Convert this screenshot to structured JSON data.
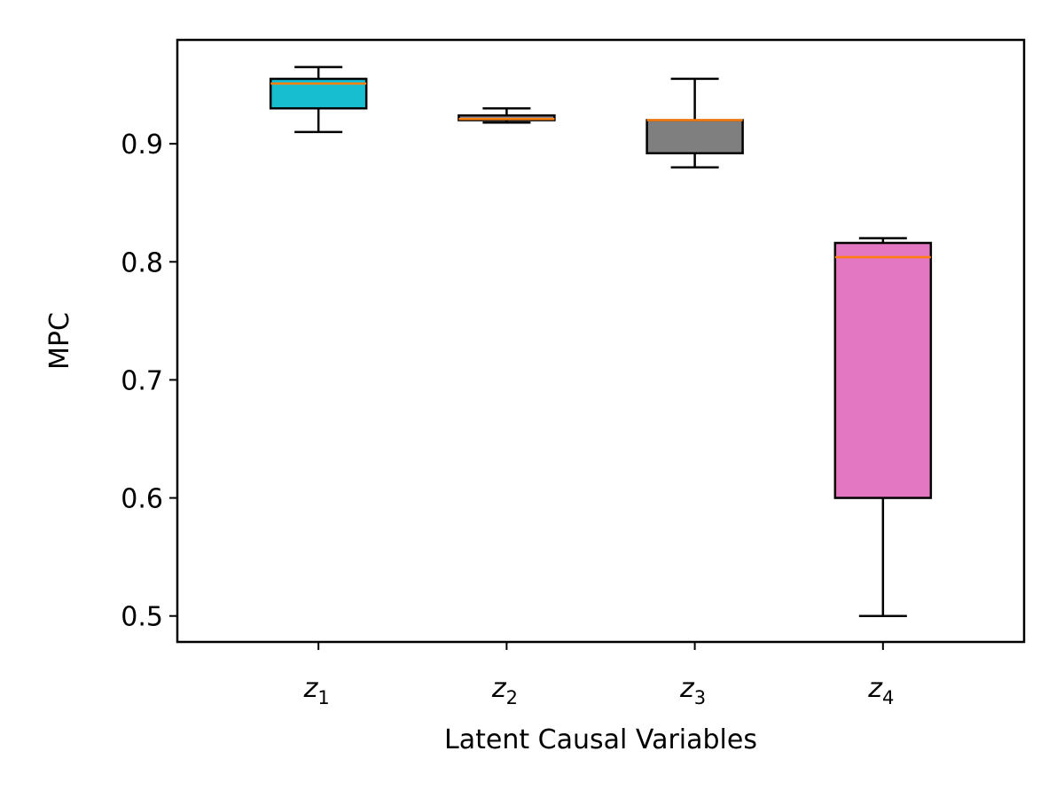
{
  "chart_data": {
    "type": "box",
    "title": "",
    "xlabel": "Latent Causal Variables",
    "ylabel": "MPC",
    "ylim": [
      0.478,
      0.988
    ],
    "yticks": [
      0.5,
      0.6,
      0.7,
      0.8,
      0.9
    ],
    "ytick_labels": [
      "0.5",
      "0.6",
      "0.7",
      "0.8",
      "0.9"
    ],
    "grid": false,
    "categories": [
      {
        "base": "z",
        "sub": "1"
      },
      {
        "base": "z",
        "sub": "2"
      },
      {
        "base": "z",
        "sub": "3"
      },
      {
        "base": "z",
        "sub": "4"
      }
    ],
    "boxes": [
      {
        "whisker_low": 0.91,
        "q1": 0.93,
        "median": 0.951,
        "q3": 0.955,
        "whisker_high": 0.965,
        "color": "#17becf"
      },
      {
        "whisker_low": 0.918,
        "q1": 0.92,
        "median": 0.921,
        "q3": 0.924,
        "whisker_high": 0.93,
        "color": "#8c8c8c"
      },
      {
        "whisker_low": 0.88,
        "q1": 0.892,
        "median": 0.92,
        "q3": 0.92,
        "whisker_high": 0.955,
        "color": "#7f7f7f"
      },
      {
        "whisker_low": 0.5,
        "q1": 0.6,
        "median": 0.804,
        "q3": 0.816,
        "whisker_high": 0.82,
        "color": "#e377c2"
      }
    ],
    "median_color": "#ff7f0e",
    "edge_color": "#000000"
  }
}
